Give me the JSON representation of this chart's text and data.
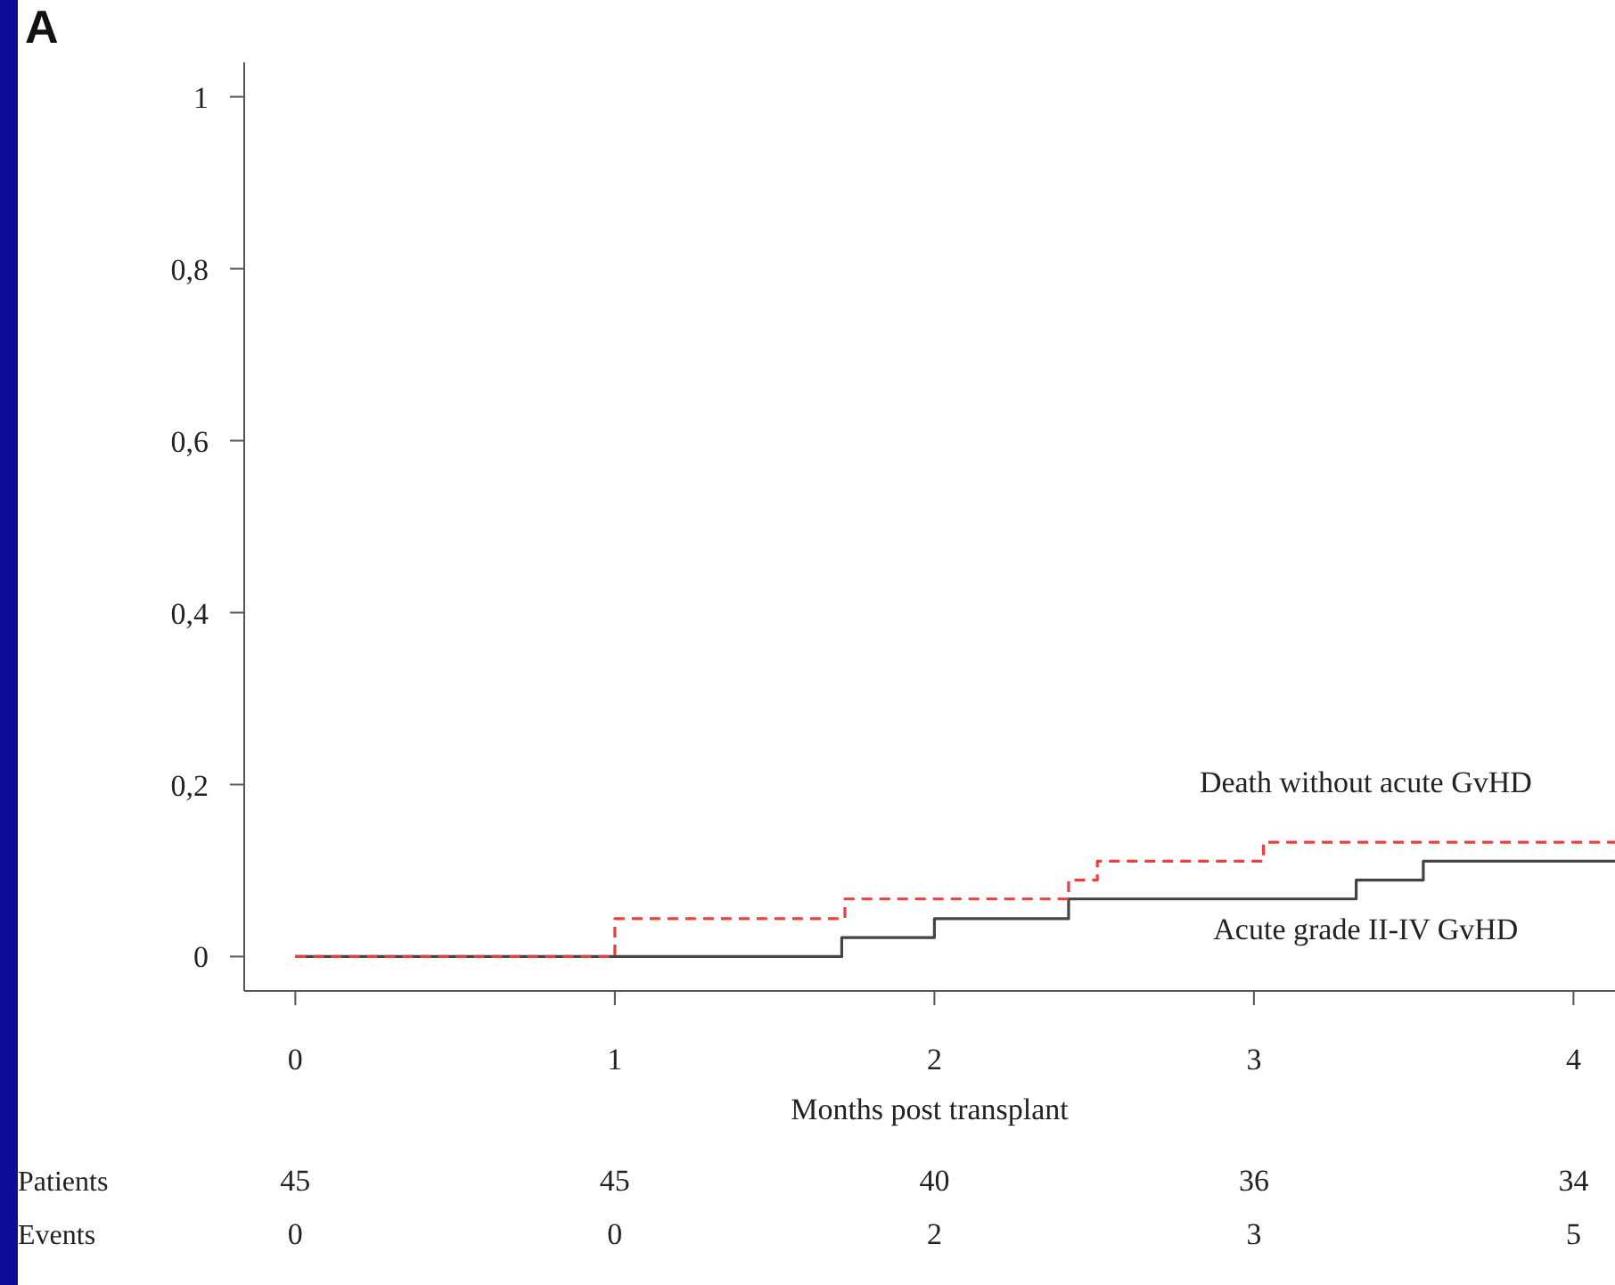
{
  "chart_data": {
    "type": "step",
    "xlabel": "Months post transplant",
    "annotations": [
      "A",
      "Patients",
      "45",
      "45",
      "40",
      "36",
      "34",
      "Events",
      "0",
      "0",
      "2",
      "3",
      "5"
    ],
    "xlim": [
      -0.16,
      4.13
    ],
    "xticks": [
      0,
      1,
      2,
      3,
      4
    ],
    "ylim": [
      -0.04,
      1.04
    ],
    "yticks": [
      0,
      {
        "value": 0.2,
        "label": "0,2"
      },
      {
        "value": 0.4,
        "label": "0,4"
      },
      {
        "value": 0.6,
        "label": "0,6"
      },
      {
        "value": 0.8,
        "label": "0,8"
      },
      1
    ],
    "grid": false,
    "legend": false,
    "marker": "none",
    "series": [
      {
        "name": "Death without acute GvHD",
        "color": "#e8403a",
        "line_style": "dashed",
        "x": [
          0,
          1,
          1.72,
          2.42,
          2.51,
          3.03,
          4.13
        ],
        "values": [
          0,
          0.044,
          0.067,
          0.089,
          0.111,
          0.133,
          0.133
        ]
      },
      {
        "name": "Acute grade II-IV GvHD",
        "color": "#444444",
        "line_style": "solid",
        "x": [
          0,
          1.71,
          2,
          2.42,
          3.32,
          3.53,
          4.13
        ],
        "values": [
          0,
          0.022,
          0.044,
          0.067,
          0.089,
          0.111,
          0.111
        ]
      }
    ]
  }
}
